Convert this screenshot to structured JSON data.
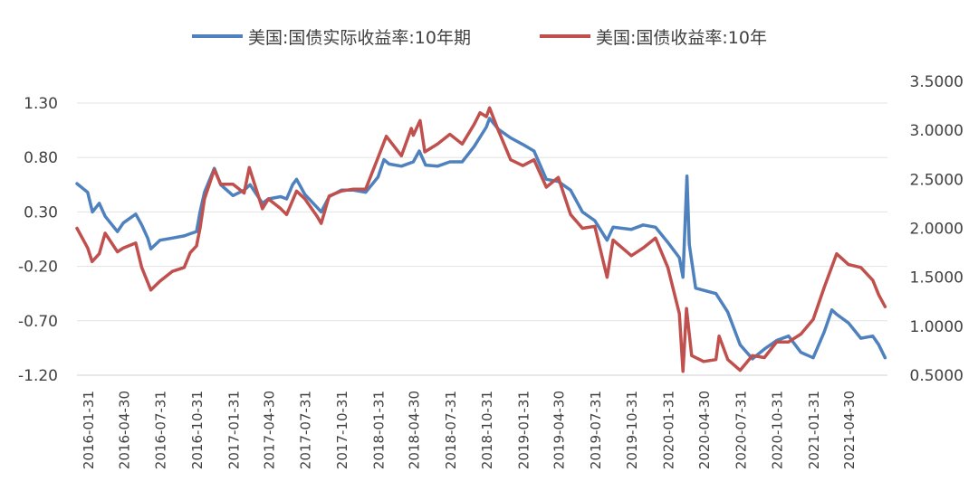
{
  "chart_data": {
    "type": "line",
    "title": "",
    "legend_position": "top",
    "grid": "horizontal",
    "y_left": {
      "min": -1.2,
      "max": 1.3,
      "step": 0.5,
      "tick_labels": [
        "1.30",
        "0.80",
        "0.30",
        "-0.20",
        "-0.70",
        "-1.20"
      ]
    },
    "y_right": {
      "min": 0.5,
      "max": 3.5,
      "step": 0.5,
      "tick_labels": [
        "3.5000",
        "3.0000",
        "2.5000",
        "2.0000",
        "1.5000",
        "1.0000",
        "0.5000"
      ]
    },
    "x_tick_labels": [
      "2016-01-31",
      "2016-04-30",
      "2016-07-31",
      "2016-10-31",
      "2017-01-31",
      "2017-04-30",
      "2017-07-31",
      "2017-10-31",
      "2018-01-31",
      "2018-04-30",
      "2018-07-31",
      "2018-10-31",
      "2019-01-31",
      "2019-04-30",
      "2019-07-31",
      "2019-10-31",
      "2020-01-31",
      "2020-04-30",
      "2020-07-31",
      "2020-10-31",
      "2021-01-31",
      "2021-04-30"
    ],
    "series": [
      {
        "name": "美国:国债实际收益率:10年期",
        "axis": "left",
        "color": "#4E81BD",
        "points": [
          [
            "2016-01-04",
            0.56
          ],
          [
            "2016-01-31",
            0.48
          ],
          [
            "2016-02-12",
            0.3
          ],
          [
            "2016-02-29",
            0.38
          ],
          [
            "2016-03-15",
            0.26
          ],
          [
            "2016-04-15",
            0.12
          ],
          [
            "2016-04-30",
            0.2
          ],
          [
            "2016-05-31",
            0.28
          ],
          [
            "2016-06-15",
            0.18
          ],
          [
            "2016-06-30",
            0.06
          ],
          [
            "2016-07-08",
            -0.04
          ],
          [
            "2016-07-31",
            0.04
          ],
          [
            "2016-08-31",
            0.06
          ],
          [
            "2016-09-30",
            0.08
          ],
          [
            "2016-10-15",
            0.1
          ],
          [
            "2016-10-31",
            0.12
          ],
          [
            "2016-11-09",
            0.3
          ],
          [
            "2016-11-20",
            0.48
          ],
          [
            "2016-12-15",
            0.7
          ],
          [
            "2016-12-31",
            0.55
          ],
          [
            "2017-01-31",
            0.45
          ],
          [
            "2017-02-28",
            0.5
          ],
          [
            "2017-03-15",
            0.55
          ],
          [
            "2017-04-15",
            0.38
          ],
          [
            "2017-04-30",
            0.42
          ],
          [
            "2017-05-31",
            0.44
          ],
          [
            "2017-06-15",
            0.42
          ],
          [
            "2017-06-30",
            0.55
          ],
          [
            "2017-07-10",
            0.6
          ],
          [
            "2017-07-31",
            0.46
          ],
          [
            "2017-08-31",
            0.34
          ],
          [
            "2017-09-10",
            0.3
          ],
          [
            "2017-09-30",
            0.44
          ],
          [
            "2017-10-31",
            0.5
          ],
          [
            "2017-11-30",
            0.5
          ],
          [
            "2017-12-31",
            0.48
          ],
          [
            "2018-01-31",
            0.62
          ],
          [
            "2018-02-15",
            0.78
          ],
          [
            "2018-02-28",
            0.74
          ],
          [
            "2018-03-31",
            0.72
          ],
          [
            "2018-04-30",
            0.76
          ],
          [
            "2018-05-15",
            0.86
          ],
          [
            "2018-05-31",
            0.73
          ],
          [
            "2018-06-30",
            0.72
          ],
          [
            "2018-07-31",
            0.76
          ],
          [
            "2018-08-31",
            0.76
          ],
          [
            "2018-09-30",
            0.9
          ],
          [
            "2018-10-31",
            1.08
          ],
          [
            "2018-11-08",
            1.16
          ],
          [
            "2018-11-30",
            1.06
          ],
          [
            "2018-12-31",
            0.98
          ],
          [
            "2019-01-31",
            0.92
          ],
          [
            "2019-02-28",
            0.86
          ],
          [
            "2019-03-31",
            0.6
          ],
          [
            "2019-04-30",
            0.58
          ],
          [
            "2019-05-31",
            0.5
          ],
          [
            "2019-06-30",
            0.3
          ],
          [
            "2019-07-31",
            0.22
          ],
          [
            "2019-08-31",
            0.04
          ],
          [
            "2019-09-15",
            0.16
          ],
          [
            "2019-10-31",
            0.14
          ],
          [
            "2019-11-30",
            0.18
          ],
          [
            "2019-12-31",
            0.16
          ],
          [
            "2020-01-31",
            0.02
          ],
          [
            "2020-02-29",
            -0.12
          ],
          [
            "2020-03-09",
            -0.3
          ],
          [
            "2020-03-19",
            0.63
          ],
          [
            "2020-03-25",
            0.0
          ],
          [
            "2020-04-10",
            -0.4
          ],
          [
            "2020-04-30",
            -0.42
          ],
          [
            "2020-05-31",
            -0.45
          ],
          [
            "2020-06-30",
            -0.62
          ],
          [
            "2020-07-31",
            -0.92
          ],
          [
            "2020-08-31",
            -1.05
          ],
          [
            "2020-09-30",
            -0.96
          ],
          [
            "2020-10-31",
            -0.88
          ],
          [
            "2020-11-30",
            -0.84
          ],
          [
            "2020-12-31",
            -0.99
          ],
          [
            "2021-01-31",
            -1.04
          ],
          [
            "2021-02-28",
            -0.8
          ],
          [
            "2021-03-19",
            -0.6
          ],
          [
            "2021-03-31",
            -0.64
          ],
          [
            "2021-04-30",
            -0.72
          ],
          [
            "2021-05-31",
            -0.86
          ],
          [
            "2021-06-30",
            -0.84
          ],
          [
            "2021-07-15",
            -0.92
          ],
          [
            "2021-07-31",
            -1.04
          ]
        ]
      },
      {
        "name": "美国:国债收益率:10年",
        "axis": "right",
        "color": "#C0504D",
        "points": [
          [
            "2016-01-04",
            2.0
          ],
          [
            "2016-01-31",
            1.8
          ],
          [
            "2016-02-11",
            1.66
          ],
          [
            "2016-02-29",
            1.74
          ],
          [
            "2016-03-15",
            1.95
          ],
          [
            "2016-04-15",
            1.76
          ],
          [
            "2016-04-30",
            1.8
          ],
          [
            "2016-05-31",
            1.85
          ],
          [
            "2016-06-15",
            1.6
          ],
          [
            "2016-07-08",
            1.37
          ],
          [
            "2016-07-31",
            1.46
          ],
          [
            "2016-08-31",
            1.56
          ],
          [
            "2016-09-30",
            1.6
          ],
          [
            "2016-10-15",
            1.75
          ],
          [
            "2016-10-31",
            1.82
          ],
          [
            "2016-11-09",
            2.0
          ],
          [
            "2016-11-20",
            2.3
          ],
          [
            "2016-12-15",
            2.6
          ],
          [
            "2016-12-31",
            2.45
          ],
          [
            "2017-01-31",
            2.45
          ],
          [
            "2017-02-28",
            2.36
          ],
          [
            "2017-03-13",
            2.62
          ],
          [
            "2017-04-15",
            2.2
          ],
          [
            "2017-04-30",
            2.3
          ],
          [
            "2017-05-31",
            2.2
          ],
          [
            "2017-06-15",
            2.14
          ],
          [
            "2017-07-10",
            2.38
          ],
          [
            "2017-07-31",
            2.3
          ],
          [
            "2017-08-31",
            2.12
          ],
          [
            "2017-09-10",
            2.05
          ],
          [
            "2017-09-30",
            2.33
          ],
          [
            "2017-10-31",
            2.38
          ],
          [
            "2017-11-30",
            2.4
          ],
          [
            "2017-12-31",
            2.4
          ],
          [
            "2018-01-31",
            2.72
          ],
          [
            "2018-02-21",
            2.94
          ],
          [
            "2018-03-31",
            2.74
          ],
          [
            "2018-04-25",
            3.02
          ],
          [
            "2018-04-30",
            2.95
          ],
          [
            "2018-05-17",
            3.1
          ],
          [
            "2018-05-29",
            2.78
          ],
          [
            "2018-06-30",
            2.86
          ],
          [
            "2018-07-31",
            2.96
          ],
          [
            "2018-08-31",
            2.86
          ],
          [
            "2018-09-30",
            3.06
          ],
          [
            "2018-10-15",
            3.18
          ],
          [
            "2018-10-31",
            3.14
          ],
          [
            "2018-11-08",
            3.23
          ],
          [
            "2018-11-30",
            3.0
          ],
          [
            "2018-12-31",
            2.7
          ],
          [
            "2019-01-31",
            2.64
          ],
          [
            "2019-02-28",
            2.7
          ],
          [
            "2019-03-31",
            2.42
          ],
          [
            "2019-04-30",
            2.52
          ],
          [
            "2019-05-31",
            2.14
          ],
          [
            "2019-06-30",
            2.0
          ],
          [
            "2019-07-31",
            2.02
          ],
          [
            "2019-08-31",
            1.5
          ],
          [
            "2019-09-15",
            1.88
          ],
          [
            "2019-10-31",
            1.72
          ],
          [
            "2019-11-30",
            1.8
          ],
          [
            "2019-12-31",
            1.9
          ],
          [
            "2020-01-31",
            1.6
          ],
          [
            "2020-02-29",
            1.13
          ],
          [
            "2020-03-09",
            0.54
          ],
          [
            "2020-03-18",
            1.18
          ],
          [
            "2020-03-31",
            0.7
          ],
          [
            "2020-04-30",
            0.64
          ],
          [
            "2020-05-31",
            0.66
          ],
          [
            "2020-06-08",
            0.9
          ],
          [
            "2020-06-30",
            0.66
          ],
          [
            "2020-07-31",
            0.55
          ],
          [
            "2020-08-31",
            0.7
          ],
          [
            "2020-09-30",
            0.68
          ],
          [
            "2020-10-31",
            0.84
          ],
          [
            "2020-11-30",
            0.84
          ],
          [
            "2020-12-31",
            0.92
          ],
          [
            "2021-01-31",
            1.07
          ],
          [
            "2021-02-28",
            1.4
          ],
          [
            "2021-03-31",
            1.74
          ],
          [
            "2021-04-30",
            1.63
          ],
          [
            "2021-05-31",
            1.6
          ],
          [
            "2021-06-30",
            1.47
          ],
          [
            "2021-07-15",
            1.32
          ],
          [
            "2021-07-31",
            1.2
          ]
        ]
      }
    ]
  }
}
